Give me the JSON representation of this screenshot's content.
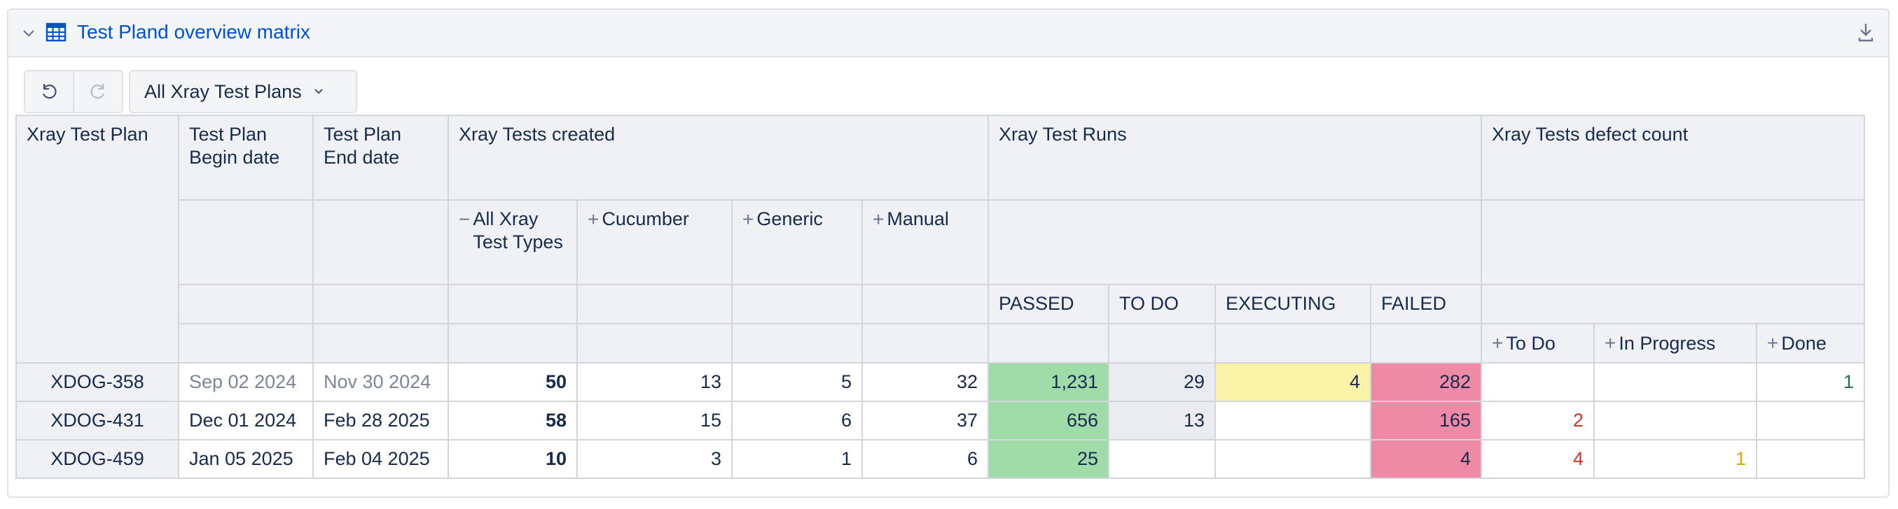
{
  "panel": {
    "title": "Test Pland overview matrix",
    "icons": {
      "collapse": "chevron-down-icon",
      "table": "table-grid-icon",
      "download": "download-icon"
    }
  },
  "toolbar": {
    "undo_icon": "undo-icon",
    "redo_icon": "redo-icon",
    "plan_filter": "All Xray Test Plans"
  },
  "headers": {
    "plan": "Xray Test Plan",
    "begin": "Test Plan Begin date",
    "end": "Test Plan End date",
    "created": "Xray Tests created",
    "runs": "Xray Test Runs",
    "defects": "Xray Tests defect count",
    "created_sub": [
      "All Xray Test Types",
      "Cucumber",
      "Generic",
      "Manual"
    ],
    "created_sub_toggle": [
      "−",
      "+",
      "+",
      "+"
    ],
    "run_status": [
      "PASSED",
      "TO DO",
      "EXECUTING",
      "FAILED"
    ],
    "defect_status": [
      "To Do",
      "In Progress",
      "Done"
    ],
    "defect_toggle": "+"
  },
  "rows": [
    {
      "plan": "XDOG-358",
      "begin": "Sep 02 2024",
      "end": "Nov 30 2024",
      "all": "50",
      "cucumber": "13",
      "generic": "5",
      "manual": "32",
      "passed": "1,231",
      "todo": "29",
      "executing": "4",
      "failed": "282",
      "d_todo": "",
      "d_inprogress": "",
      "d_done": "1"
    },
    {
      "plan": "XDOG-431",
      "begin": "Dec 01 2024",
      "end": "Feb 28 2025",
      "all": "58",
      "cucumber": "15",
      "generic": "6",
      "manual": "37",
      "passed": "656",
      "todo": "13",
      "executing": "",
      "failed": "165",
      "d_todo": "2",
      "d_inprogress": "",
      "d_done": ""
    },
    {
      "plan": "XDOG-459",
      "begin": "Jan 05 2025",
      "end": "Feb 04 2025",
      "all": "10",
      "cucumber": "3",
      "generic": "1",
      "manual": "6",
      "passed": "25",
      "todo": "",
      "executing": "",
      "failed": "4",
      "d_todo": "4",
      "d_inprogress": "1",
      "d_done": ""
    }
  ],
  "colors": {
    "passed": "#9fdca8",
    "todo": "#ebecf0",
    "executing": "#fbf3a8",
    "failed": "#ee89a6",
    "defect_todo": "#c9372c",
    "defect_inprogress": "#e2a400",
    "defect_done": "#216e4e",
    "link": "#0052cc"
  }
}
